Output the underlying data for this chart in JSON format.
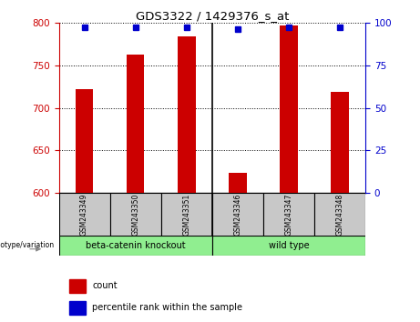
{
  "title": "GDS3322 / 1429376_s_at",
  "samples": [
    "GSM243349",
    "GSM243350",
    "GSM243351",
    "GSM243346",
    "GSM243347",
    "GSM243348"
  ],
  "counts": [
    722,
    762,
    784,
    624,
    797,
    719
  ],
  "percentile_ranks": [
    97,
    97,
    97,
    96,
    97,
    97
  ],
  "ylim_left": [
    600,
    800
  ],
  "ylim_right": [
    0,
    100
  ],
  "yticks_left": [
    600,
    650,
    700,
    750,
    800
  ],
  "yticks_right": [
    0,
    25,
    50,
    75,
    100
  ],
  "group_labels": [
    "beta-catenin knockout",
    "wild type"
  ],
  "group_colors": [
    "#90EE90",
    "#90EE90"
  ],
  "group_sizes": [
    3,
    3
  ],
  "bar_color": "#CC0000",
  "dot_color": "#0000CC",
  "left_axis_color": "#CC0000",
  "right_axis_color": "#0000CC",
  "grid_color": "#000000",
  "tick_bg_color": "#C8C8C8",
  "genotype_label": "genotype/variation",
  "legend_count": "count",
  "legend_percentile": "percentile rank within the sample",
  "bar_width": 0.35,
  "separator_after": 2,
  "fig_width": 4.61,
  "fig_height": 3.54
}
